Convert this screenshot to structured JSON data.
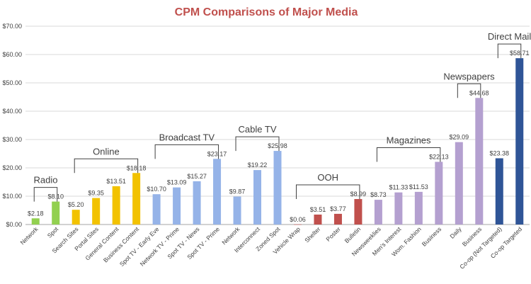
{
  "chart_data": {
    "type": "bar",
    "title": "CPM Comparisons of Major Media",
    "xlabel": "",
    "ylabel": "",
    "ylim": [
      0,
      70
    ],
    "yticks": [
      "$0.00",
      "$10.00",
      "$20.00",
      "$30.00",
      "$40.00",
      "$50.00",
      "$60.00",
      "$70.00"
    ],
    "grid": true,
    "categories": [
      "Network",
      "Spot",
      "Search Sites",
      "Portal Sites",
      "General Content",
      "Business Content",
      "Spot TV - Early Eve",
      "Network TV - Prime",
      "Spot TV - News",
      "Spot TV - Prime",
      "Network",
      "Interconnect",
      "Zoned Spot",
      "Vehicle Wrap",
      "Shelter",
      "Poster",
      "Bulletin",
      "Newsweeklies",
      "Men's Interest",
      "Wom. Fashion",
      "Business",
      "Daily",
      "Business",
      "Co-op (Not Targeted)",
      "Co-op Targeted"
    ],
    "values": [
      2.18,
      8.1,
      5.2,
      9.35,
      13.51,
      18.18,
      10.7,
      13.09,
      15.27,
      23.17,
      9.87,
      19.22,
      25.98,
      0.06,
      3.51,
      3.77,
      8.99,
      8.73,
      11.33,
      11.53,
      22.13,
      29.09,
      44.68,
      23.38,
      58.71
    ],
    "labels": [
      "$2.18",
      "$8.10",
      "$5.20",
      "$9.35",
      "$13.51",
      "$18.18",
      "$10.70",
      "$13.09",
      "$15.27",
      "$23.17",
      "$9.87",
      "$19.22",
      "$25.98",
      "$0.06",
      "$3.51",
      "$3.77",
      "$8.99",
      "$8.73",
      "$11.33",
      "$11.53",
      "$22.13",
      "$29.09",
      "$44.68",
      "$23.38",
      "$58.71"
    ],
    "colors": [
      "#92d050",
      "#92d050",
      "#f2c200",
      "#f2c200",
      "#f2c200",
      "#f2c200",
      "#95b3e8",
      "#95b3e8",
      "#95b3e8",
      "#95b3e8",
      "#95b3e8",
      "#95b3e8",
      "#95b3e8",
      "#c0504d",
      "#c0504d",
      "#c0504d",
      "#c0504d",
      "#b4a0d0",
      "#b4a0d0",
      "#b4a0d0",
      "#b4a0d0",
      "#b4a0d0",
      "#b4a0d0",
      "#2f5597",
      "#2f5597"
    ],
    "groups": [
      {
        "name": "Radio",
        "start": 0,
        "end": 1
      },
      {
        "name": "Online",
        "start": 2,
        "end": 5
      },
      {
        "name": "Broadcast TV",
        "start": 6,
        "end": 9
      },
      {
        "name": "Cable TV",
        "start": 10,
        "end": 12
      },
      {
        "name": "OOH",
        "start": 13,
        "end": 16
      },
      {
        "name": "Magazines",
        "start": 17,
        "end": 20
      },
      {
        "name": "Newspapers",
        "start": 21,
        "end": 22
      },
      {
        "name": "Direct Mail",
        "start": 23,
        "end": 24
      }
    ]
  }
}
